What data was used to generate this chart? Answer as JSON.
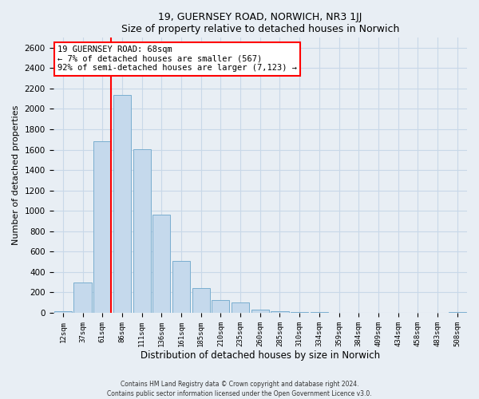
{
  "title": "19, GUERNSEY ROAD, NORWICH, NR3 1JJ",
  "subtitle": "Size of property relative to detached houses in Norwich",
  "xlabel": "Distribution of detached houses by size in Norwich",
  "ylabel": "Number of detached properties",
  "bar_color": "#c5d9ec",
  "bar_edge_color": "#7aaed0",
  "categories": [
    "12sqm",
    "37sqm",
    "61sqm",
    "86sqm",
    "111sqm",
    "136sqm",
    "161sqm",
    "185sqm",
    "210sqm",
    "235sqm",
    "260sqm",
    "285sqm",
    "310sqm",
    "334sqm",
    "359sqm",
    "384sqm",
    "409sqm",
    "434sqm",
    "458sqm",
    "483sqm",
    "508sqm"
  ],
  "values": [
    18,
    295,
    1680,
    2140,
    1605,
    960,
    505,
    245,
    125,
    98,
    30,
    15,
    5,
    5,
    3,
    2,
    2,
    1,
    0,
    0,
    8
  ],
  "ylim": [
    0,
    2700
  ],
  "yticks": [
    0,
    200,
    400,
    600,
    800,
    1000,
    1200,
    1400,
    1600,
    1800,
    2000,
    2200,
    2400,
    2600
  ],
  "annotation_title": "19 GUERNSEY ROAD: 68sqm",
  "annotation_line1": "← 7% of detached houses are smaller (567)",
  "annotation_line2": "92% of semi-detached houses are larger (7,123) →",
  "red_line_bar_index": 2,
  "footer_line1": "Contains HM Land Registry data © Crown copyright and database right 2024.",
  "footer_line2": "Contains public sector information licensed under the Open Government Licence v3.0.",
  "background_color": "#e8eef4",
  "plot_bg_color": "#e8eef4",
  "grid_color": "#c8d8e8"
}
